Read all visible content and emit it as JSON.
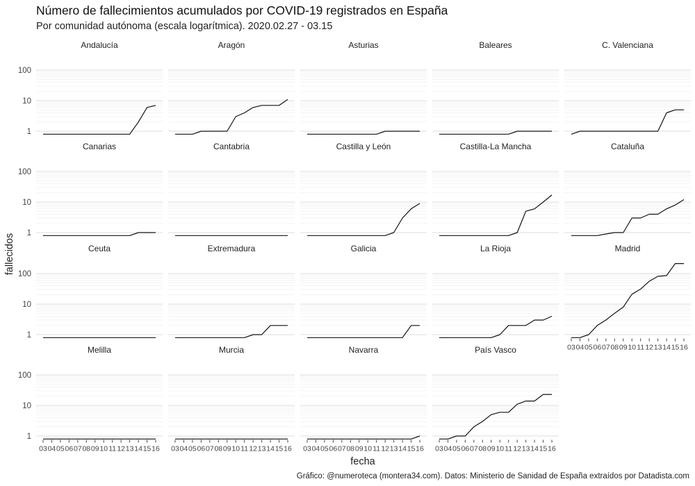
{
  "chart": {
    "title": "Número de fallecimientos acumulados por COVID-19 registrados en España",
    "subtitle": "Por comunidad autónoma (escala logarítmica). 2020.02.27 - 03.15",
    "caption": "Gráfico: @numeroteca (montera34.com). Datos: Ministerio de Sanidad de España extraídos por Datadista.com"
  },
  "chart_data": {
    "type": "line",
    "layout": "small-multiples",
    "x_scale": "linear",
    "y_scale": "log",
    "xlabel": "fecha",
    "ylabel": "fallecidos",
    "x_ticks": [
      "03",
      "04",
      "05",
      "06",
      "07",
      "08",
      "09",
      "10",
      "11",
      "12",
      "13",
      "14",
      "15",
      "16"
    ],
    "x_tick_values": [
      3,
      4,
      5,
      6,
      7,
      8,
      9,
      10,
      11,
      12,
      13,
      14,
      15,
      16
    ],
    "xlim": [
      2.2,
      16.8
    ],
    "y_ticks": [
      1,
      10,
      100
    ],
    "y_tick_labels": [
      "1",
      "10",
      "100"
    ],
    "ylim": [
      0.75,
      120
    ],
    "grid": true,
    "line_color": "#111111",
    "facets": [
      {
        "name": "Andalucía",
        "x": [
          3,
          4,
          5,
          6,
          7,
          8,
          9,
          10,
          11,
          12,
          13,
          14,
          15,
          16
        ],
        "values": [
          0.8,
          0.8,
          0.8,
          0.8,
          0.8,
          0.8,
          0.8,
          0.8,
          0.8,
          0.8,
          0.8,
          2,
          6,
          7
        ]
      },
      {
        "name": "Aragón",
        "x": [
          3,
          4,
          5,
          6,
          7,
          8,
          9,
          10,
          11,
          12,
          13,
          14,
          15,
          16
        ],
        "values": [
          0.8,
          0.8,
          0.8,
          1,
          1,
          1,
          1,
          3,
          4,
          6,
          7,
          7,
          7,
          11
        ]
      },
      {
        "name": "Asturias",
        "x": [
          3,
          4,
          5,
          6,
          7,
          8,
          9,
          10,
          11,
          12,
          13,
          14,
          15,
          16
        ],
        "values": [
          0.8,
          0.8,
          0.8,
          0.8,
          0.8,
          0.8,
          0.8,
          0.8,
          0.8,
          1,
          1,
          1,
          1,
          1
        ]
      },
      {
        "name": "Baleares",
        "x": [
          3,
          4,
          5,
          6,
          7,
          8,
          9,
          10,
          11,
          12,
          13,
          14,
          15,
          16
        ],
        "values": [
          0.8,
          0.8,
          0.8,
          0.8,
          0.8,
          0.8,
          0.8,
          0.8,
          0.8,
          1,
          1,
          1,
          1,
          1
        ]
      },
      {
        "name": "C. Valenciana",
        "x": [
          3,
          4,
          5,
          6,
          7,
          8,
          9,
          10,
          11,
          12,
          13,
          14,
          15,
          16
        ],
        "values": [
          0.8,
          1,
          1,
          1,
          1,
          1,
          1,
          1,
          1,
          1,
          1,
          4,
          5,
          5
        ]
      },
      {
        "name": "Canarias",
        "x": [
          3,
          4,
          5,
          6,
          7,
          8,
          9,
          10,
          11,
          12,
          13,
          14,
          15,
          16
        ],
        "values": [
          0.8,
          0.8,
          0.8,
          0.8,
          0.8,
          0.8,
          0.8,
          0.8,
          0.8,
          0.8,
          0.8,
          1,
          1,
          1
        ]
      },
      {
        "name": "Cantabria",
        "x": [
          3,
          4,
          5,
          6,
          7,
          8,
          9,
          10,
          11,
          12,
          13,
          14,
          15,
          16
        ],
        "values": [
          0.8,
          0.8,
          0.8,
          0.8,
          0.8,
          0.8,
          0.8,
          0.8,
          0.8,
          0.8,
          0.8,
          0.8,
          0.8,
          0.8
        ]
      },
      {
        "name": "Castilla y León",
        "x": [
          3,
          4,
          5,
          6,
          7,
          8,
          9,
          10,
          11,
          12,
          13,
          14,
          15,
          16
        ],
        "values": [
          0.8,
          0.8,
          0.8,
          0.8,
          0.8,
          0.8,
          0.8,
          0.8,
          0.8,
          0.8,
          1,
          3,
          6,
          9
        ]
      },
      {
        "name": "Castilla-La Mancha",
        "x": [
          3,
          4,
          5,
          6,
          7,
          8,
          9,
          10,
          11,
          12,
          13,
          14,
          15,
          16
        ],
        "values": [
          0.8,
          0.8,
          0.8,
          0.8,
          0.8,
          0.8,
          0.8,
          0.8,
          0.8,
          1,
          5,
          6,
          10,
          17
        ]
      },
      {
        "name": "Cataluña",
        "x": [
          3,
          4,
          5,
          6,
          7,
          8,
          9,
          10,
          11,
          12,
          13,
          14,
          15,
          16
        ],
        "values": [
          0.8,
          0.8,
          0.8,
          0.8,
          0.9,
          1,
          1,
          3,
          3,
          4,
          4,
          6,
          8,
          12
        ]
      },
      {
        "name": "Ceuta",
        "x": [
          3,
          4,
          5,
          6,
          7,
          8,
          9,
          10,
          11,
          12,
          13,
          14,
          15,
          16
        ],
        "values": [
          0.8,
          0.8,
          0.8,
          0.8,
          0.8,
          0.8,
          0.8,
          0.8,
          0.8,
          0.8,
          0.8,
          0.8,
          0.8,
          0.8
        ]
      },
      {
        "name": "Extremadura",
        "x": [
          3,
          4,
          5,
          6,
          7,
          8,
          9,
          10,
          11,
          12,
          13,
          14,
          15,
          16
        ],
        "values": [
          0.8,
          0.8,
          0.8,
          0.8,
          0.8,
          0.8,
          0.8,
          0.8,
          0.8,
          1,
          1,
          2,
          2,
          2
        ]
      },
      {
        "name": "Galicia",
        "x": [
          3,
          4,
          5,
          6,
          7,
          8,
          9,
          10,
          11,
          12,
          13,
          14,
          15,
          16
        ],
        "values": [
          0.8,
          0.8,
          0.8,
          0.8,
          0.8,
          0.8,
          0.8,
          0.8,
          0.8,
          0.8,
          0.8,
          0.8,
          2,
          2
        ]
      },
      {
        "name": "La Rioja",
        "x": [
          3,
          4,
          5,
          6,
          7,
          8,
          9,
          10,
          11,
          12,
          13,
          14,
          15,
          16
        ],
        "values": [
          0.8,
          0.8,
          0.8,
          0.8,
          0.8,
          0.8,
          0.8,
          1,
          2,
          2,
          2,
          3,
          3,
          4
        ]
      },
      {
        "name": "Madrid",
        "x": [
          3,
          4,
          5,
          6,
          7,
          8,
          9,
          10,
          11,
          12,
          13,
          14,
          15,
          16
        ],
        "values": [
          0.8,
          0.8,
          1,
          2,
          3,
          5,
          8,
          21,
          31,
          56,
          81,
          86,
          213,
          213
        ],
        "x_axis": true
      },
      {
        "name": "Melilla",
        "x": [
          3,
          4,
          5,
          6,
          7,
          8,
          9,
          10,
          11,
          12,
          13,
          14,
          15,
          16
        ],
        "values": [
          0.8,
          0.8,
          0.8,
          0.8,
          0.8,
          0.8,
          0.8,
          0.8,
          0.8,
          0.8,
          0.8,
          0.8,
          0.8,
          0.8
        ],
        "x_axis": true
      },
      {
        "name": "Murcia",
        "x": [
          3,
          4,
          5,
          6,
          7,
          8,
          9,
          10,
          11,
          12,
          13,
          14,
          15,
          16
        ],
        "values": [
          0.8,
          0.8,
          0.8,
          0.8,
          0.8,
          0.8,
          0.8,
          0.8,
          0.8,
          0.8,
          0.8,
          0.8,
          0.8,
          0.8
        ],
        "x_axis": true
      },
      {
        "name": "Navarra",
        "x": [
          3,
          4,
          5,
          6,
          7,
          8,
          9,
          10,
          11,
          12,
          13,
          14,
          15,
          16
        ],
        "values": [
          0.8,
          0.8,
          0.8,
          0.8,
          0.8,
          0.8,
          0.8,
          0.8,
          0.8,
          0.8,
          0.8,
          0.8,
          0.8,
          1
        ],
        "x_axis": true
      },
      {
        "name": "País Vasco",
        "x": [
          3,
          4,
          5,
          6,
          7,
          8,
          9,
          10,
          11,
          12,
          13,
          14,
          15,
          16
        ],
        "values": [
          0.8,
          0.8,
          1,
          1,
          2,
          3,
          5,
          6,
          6,
          11,
          14,
          14,
          23,
          23
        ],
        "x_axis": true
      }
    ]
  }
}
